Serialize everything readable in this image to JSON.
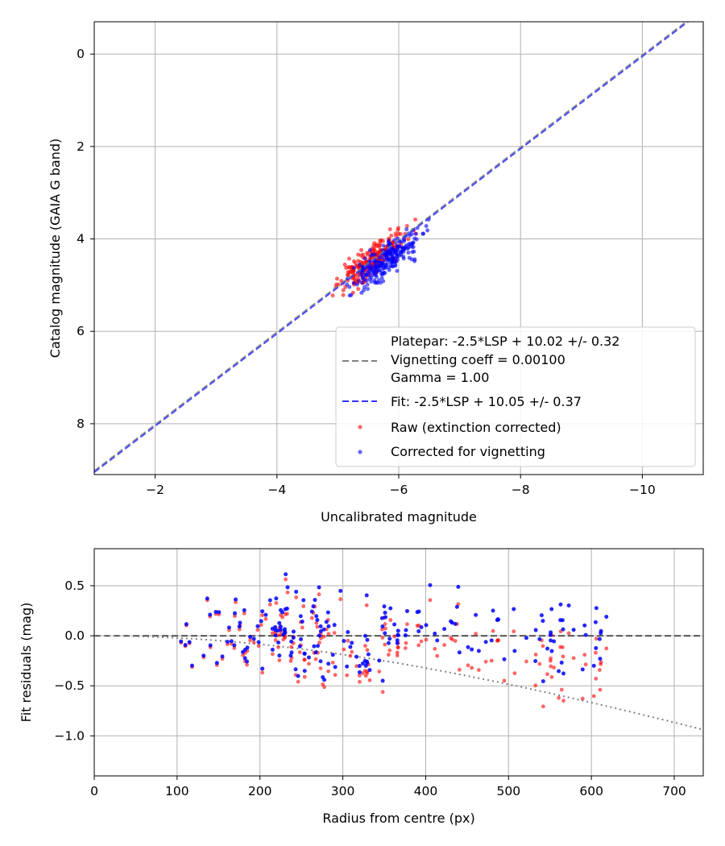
{
  "chart_data": [
    {
      "type": "scatter",
      "title": "",
      "xlabel": "Uncalibrated magnitude",
      "ylabel": "Catalog magnitude (GAIA G band)",
      "xlim": [
        -1.0,
        -11.0
      ],
      "ylim": [
        9.1,
        -0.7
      ],
      "x_inverted": true,
      "y_inverted": true,
      "xticks": [
        -2,
        -4,
        -6,
        -8,
        -10
      ],
      "xtick_labels": [
        "−2",
        "−4",
        "−6",
        "−8",
        "−10"
      ],
      "yticks": [
        0,
        2,
        4,
        6,
        8
      ],
      "ytick_labels": [
        "0",
        "2",
        "4",
        "6",
        "8"
      ],
      "grid": true,
      "lines": [
        {
          "name": "Platepar",
          "slope": 1.0,
          "intercept": 10.02,
          "color": "#808080",
          "style": "dashed"
        },
        {
          "name": "Fit",
          "slope": 1.0,
          "intercept": 10.05,
          "color": "#3333ff",
          "style": "dashed"
        }
      ],
      "series": [
        {
          "name": "Raw (extinction corrected)",
          "color": "#ff0000"
        },
        {
          "name": "Corrected for vignetting",
          "color": "#0000ff"
        }
      ],
      "legend": {
        "position": "lower-right",
        "entries": [
          {
            "label": "Platepar: -2.5*LSP + 10.02 +/- 0.32"
          },
          {
            "label": "Vignetting coeff = 0.00100"
          },
          {
            "label": "Gamma = 1.00"
          },
          {
            "label": "Fit: -2.5*LSP + 10.05 +/- 0.37"
          },
          {
            "label": "Raw (extinction corrected)"
          },
          {
            "label": "Corrected for vignetting"
          }
        ]
      }
    },
    {
      "type": "scatter",
      "title": "",
      "xlabel": "Radius from centre (px)",
      "ylabel": "Fit residuals (mag)",
      "xlim": [
        0,
        735
      ],
      "ylim": [
        -1.4,
        0.87
      ],
      "xticks": [
        0,
        100,
        200,
        300,
        400,
        500,
        600,
        700
      ],
      "xtick_labels": [
        "0",
        "100",
        "200",
        "300",
        "400",
        "500",
        "600",
        "700"
      ],
      "yticks": [
        0.5,
        0.0,
        -0.5,
        -1.0
      ],
      "ytick_labels": [
        "0.5",
        "0.0",
        "−0.5",
        "−1.0"
      ],
      "grid": true,
      "zero_line": {
        "y": 0,
        "color": "#555555",
        "style": "dashed"
      },
      "vignetting_curve": {
        "coeff": 0.001,
        "color": "#808080",
        "style": "dotted"
      },
      "series": [
        {
          "name": "raw",
          "color": "#ff0000"
        },
        {
          "name": "corrected",
          "color": "#0000ff"
        }
      ]
    }
  ]
}
